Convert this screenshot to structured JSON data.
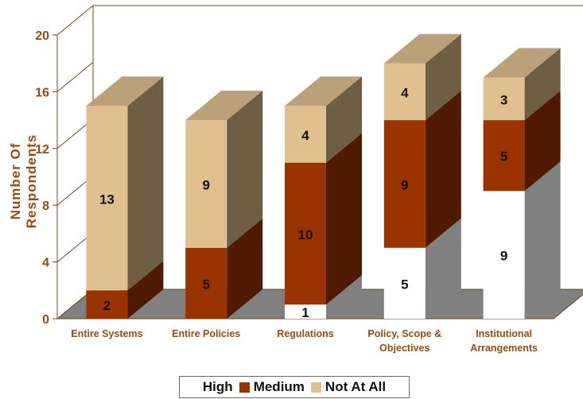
{
  "chart_data": {
    "type": "bar",
    "stacked": true,
    "three_d": true,
    "ylabel": "Number Of Respondents",
    "ylim": [
      0,
      20
    ],
    "yticks": [
      0,
      4,
      8,
      12,
      16,
      20
    ],
    "categories": [
      [
        "Entire Systems"
      ],
      [
        "Entire Policies"
      ],
      [
        "Regulations"
      ],
      [
        "Policy, Scope &",
        "Objectives"
      ],
      [
        "Institutional",
        "Arrangements"
      ]
    ],
    "series": [
      {
        "name": "High",
        "values": [
          0,
          0,
          1,
          5,
          9
        ],
        "color": "#ffffff"
      },
      {
        "name": "Medium",
        "values": [
          2,
          5,
          10,
          9,
          5
        ],
        "color": "#993300"
      },
      {
        "name": "Not At All",
        "values": [
          13,
          9,
          4,
          4,
          3
        ],
        "color": "#e0c08e"
      }
    ],
    "legend_position": "bottom",
    "grid": false
  }
}
